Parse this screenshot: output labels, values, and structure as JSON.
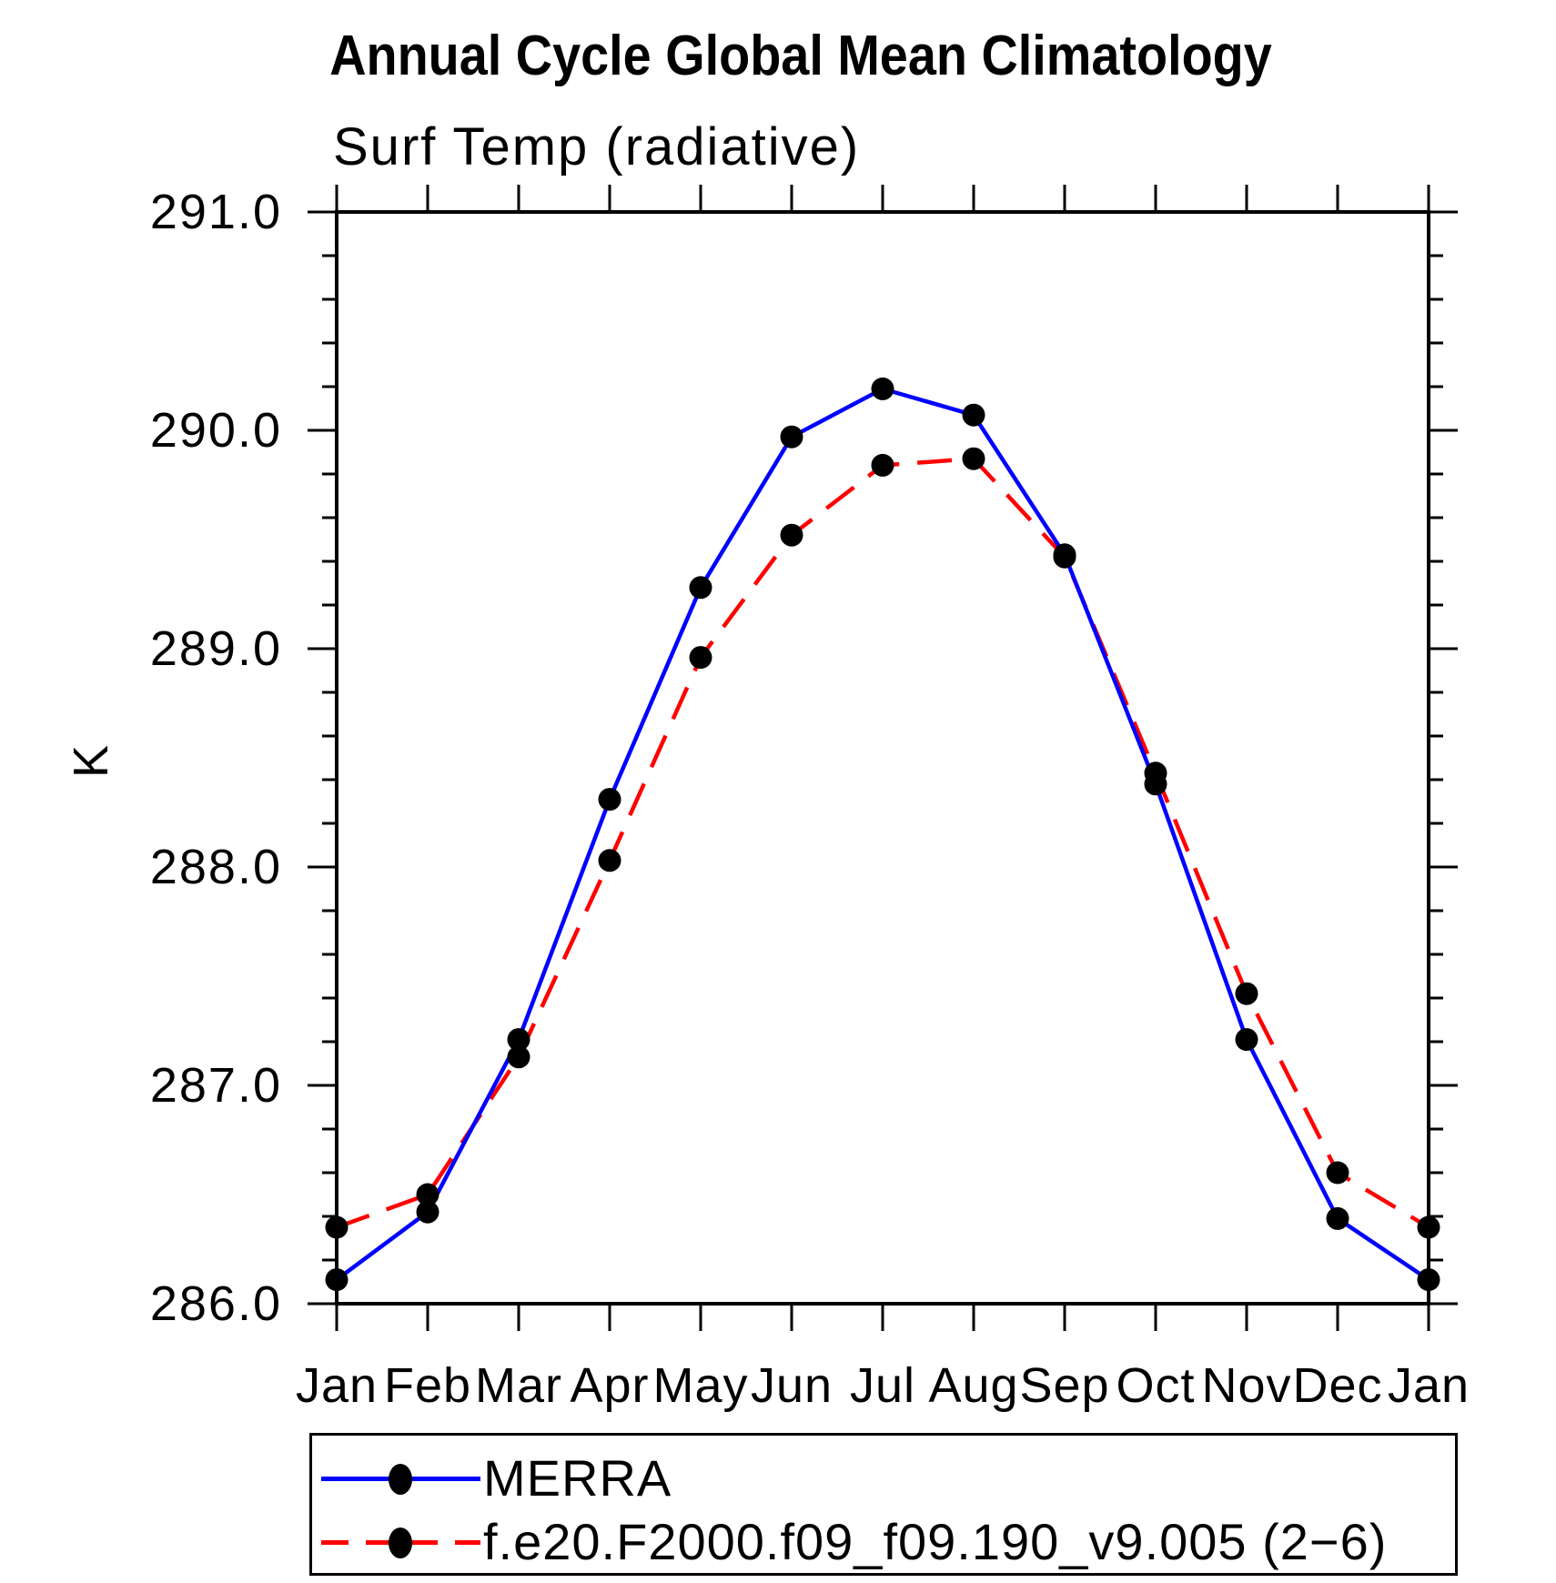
{
  "title": "Annual Cycle Global Mean Climatology",
  "subtitle": "Surf Temp (radiative)",
  "y_axis": {
    "label": "K",
    "tick_labels": [
      "291.0",
      "290.0",
      "289.0",
      "288.0",
      "287.0",
      "286.0"
    ]
  },
  "x_axis": {
    "tick_labels": [
      "Jan",
      "Feb",
      "Mar",
      "Apr",
      "May",
      "Jun",
      "Jul",
      "Aug",
      "Sep",
      "Oct",
      "Nov",
      "Dec",
      "Jan"
    ]
  },
  "legend": {
    "items": [
      {
        "label": "MERRA",
        "color": "#0000ff",
        "style": "solid"
      },
      {
        "label": "f.e20.F2000.f09_f09.190_v9.005 (2−6)",
        "color": "#ff0000",
        "style": "dashed"
      }
    ]
  },
  "chart_data": {
    "type": "line",
    "title": "Annual Cycle Global Mean Climatology",
    "subtitle": "Surf Temp (radiative)",
    "xlabel": "",
    "ylabel": "K",
    "ylim": [
      286.0,
      291.0
    ],
    "y_major_step": 1.0,
    "y_minor_step": 0.2,
    "grid": false,
    "legend_position": "bottom-left",
    "categories": [
      "Jan",
      "Feb",
      "Mar",
      "Apr",
      "May",
      "Jun",
      "Jul",
      "Aug",
      "Sep",
      "Oct",
      "Nov",
      "Dec",
      "Jan"
    ],
    "series": [
      {
        "name": "MERRA",
        "color": "#0000ff",
        "line_style": "solid",
        "marker": "filled-circle",
        "marker_color": "#000000",
        "values": [
          286.11,
          286.42,
          287.21,
          288.31,
          289.28,
          289.97,
          290.19,
          290.07,
          289.43,
          288.38,
          287.21,
          286.39,
          286.11
        ]
      },
      {
        "name": "f.e20.F2000.f09_f09.190_v9.005 (2−6)",
        "color": "#ff0000",
        "line_style": "dashed",
        "marker": "filled-circle",
        "marker_color": "#000000",
        "values": [
          286.35,
          286.5,
          287.13,
          288.03,
          288.96,
          289.52,
          289.84,
          289.87,
          289.42,
          288.43,
          287.42,
          286.6,
          286.35
        ]
      }
    ]
  }
}
